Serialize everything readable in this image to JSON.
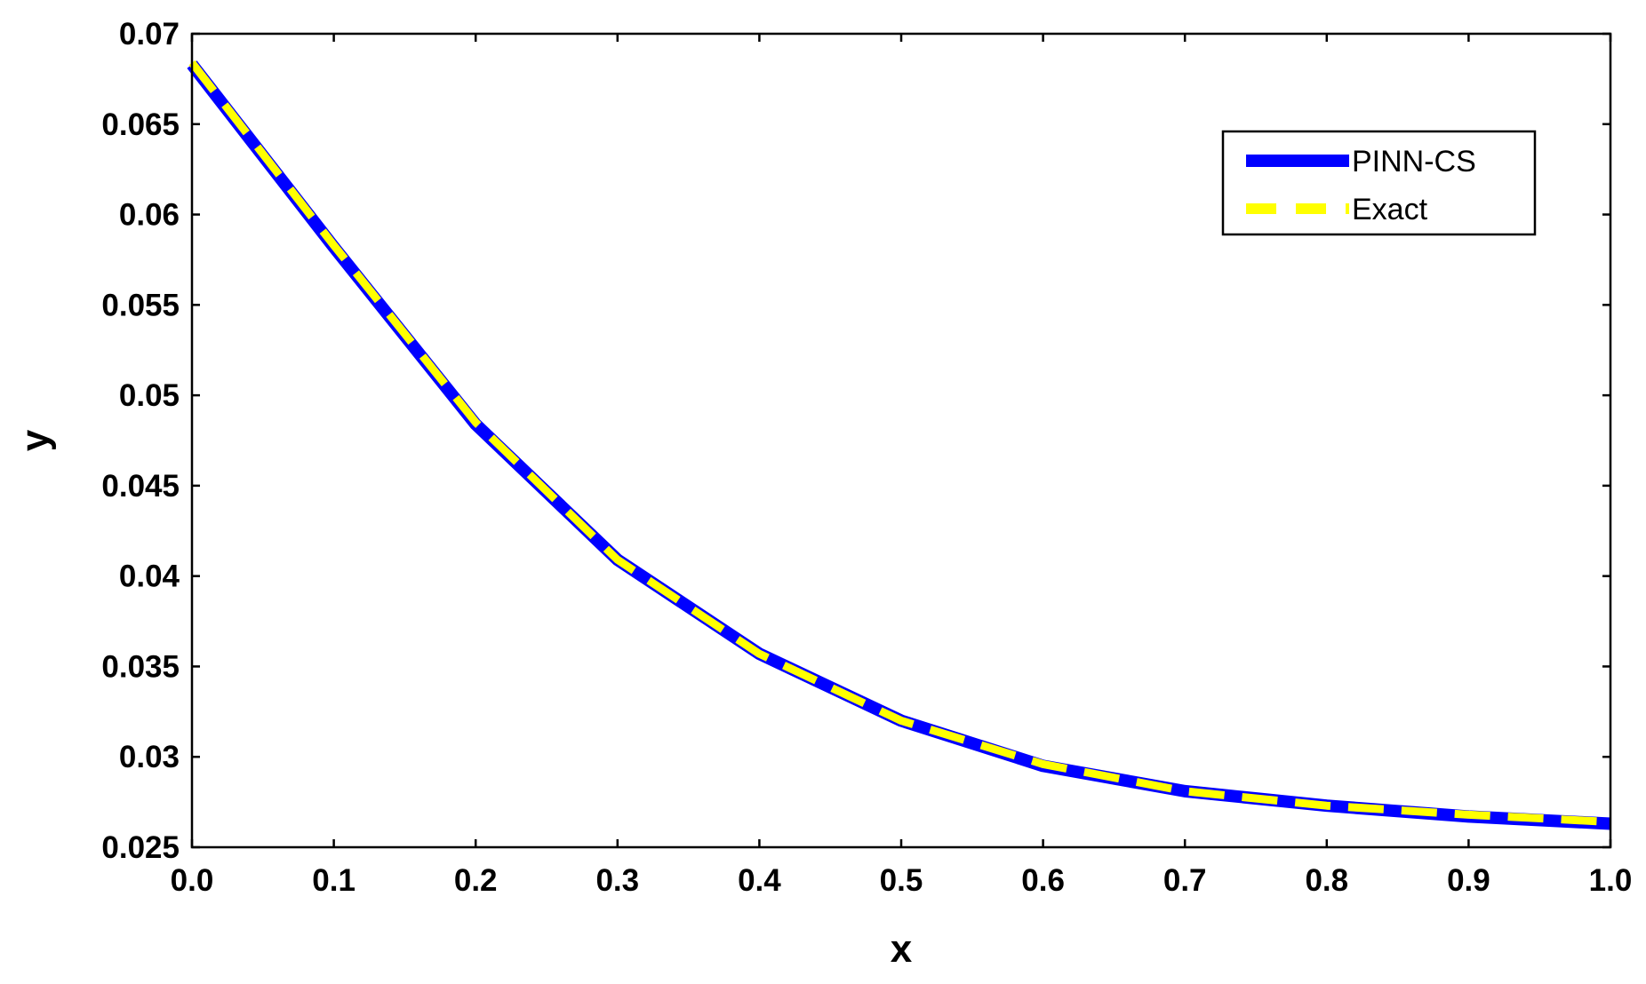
{
  "chart_data": {
    "type": "line",
    "xlabel": "x",
    "ylabel": "y",
    "xlim": [
      0.0,
      1.0
    ],
    "ylim": [
      0.025,
      0.07
    ],
    "xticks": [
      "0.0",
      "0.1",
      "0.2",
      "0.3",
      "0.4",
      "0.5",
      "0.6",
      "0.7",
      "0.8",
      "0.9",
      "1.0"
    ],
    "yticks": [
      "0.025",
      "0.03",
      "0.035",
      "0.04",
      "0.045",
      "0.05",
      "0.055",
      "0.06",
      "0.065",
      "0.07"
    ],
    "grid": false,
    "legend": "top-right",
    "x": [
      0.0,
      0.1,
      0.2,
      0.3,
      0.4,
      0.5,
      0.6,
      0.7,
      0.8,
      0.9,
      1.0
    ],
    "series": [
      {
        "name": "PINN-CS",
        "color": "#0000ff",
        "style": "solid",
        "values": [
          0.0683,
          0.0582,
          0.0484,
          0.0409,
          0.0357,
          0.032,
          0.0295,
          0.0281,
          0.0273,
          0.0267,
          0.0263
        ]
      },
      {
        "name": "Exact",
        "color": "#ffff00",
        "style": "dashed",
        "values": [
          0.0684,
          0.0583,
          0.0485,
          0.0409,
          0.0357,
          0.032,
          0.0296,
          0.0281,
          0.0273,
          0.0268,
          0.0264
        ]
      }
    ]
  }
}
